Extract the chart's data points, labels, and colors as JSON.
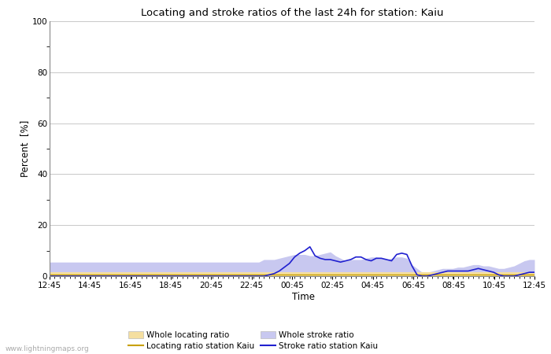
{
  "title": "Locating and stroke ratios of the last 24h for station: Kaiu",
  "xlabel": "Time",
  "ylabel": "Percent  [%]",
  "ylim": [
    0,
    100
  ],
  "yticks": [
    0,
    20,
    40,
    60,
    80,
    100
  ],
  "background_color": "#ffffff",
  "plot_bg_color": "#ffffff",
  "watermark": "www.lightningmaps.org",
  "x_labels": [
    "12:45",
    "14:45",
    "16:45",
    "18:45",
    "20:45",
    "22:45",
    "00:45",
    "02:45",
    "04:45",
    "06:45",
    "08:45",
    "10:45",
    "12:45"
  ],
  "whole_locating_color": "#f5dfa0",
  "whole_stroke_color": "#c8c8f0",
  "locating_line_color": "#c8a000",
  "stroke_line_color": "#2020d0",
  "whole_locating_ratio": [
    1.5,
    1.5,
    1.5,
    1.5,
    1.5,
    1.5,
    1.5,
    1.5,
    1.5,
    1.5,
    1.5,
    1.5,
    1.5,
    1.5,
    1.5,
    1.5,
    1.5,
    1.5,
    1.5,
    1.5,
    1.5,
    1.5,
    1.5,
    1.5,
    1.5,
    1.5,
    1.5,
    1.5,
    1.5,
    1.5,
    1.5,
    1.5,
    1.5,
    1.5,
    1.5,
    1.5,
    1.5,
    1.5,
    1.5,
    1.5,
    1.5,
    1.5,
    1.5,
    1.5,
    1.5,
    1.5,
    1.5,
    1.5,
    1.5,
    1.5,
    1.5,
    1.5,
    1.5,
    1.5,
    1.5,
    1.5,
    1.5,
    1.5,
    1.5,
    1.5,
    1.5,
    1.5,
    1.5,
    1.5,
    1.5,
    1.5,
    1.5,
    1.5,
    1.5,
    1.5,
    1.5,
    1.5,
    1.5,
    1.5,
    1.5,
    1.5,
    1.5,
    1.5,
    1.5,
    1.5,
    1.5,
    1.5,
    1.5,
    1.5,
    1.5,
    1.5,
    1.5,
    1.5,
    1.5,
    1.5,
    1.5,
    1.5,
    1.5,
    1.5,
    1.5,
    1.5
  ],
  "whole_stroke_ratio": [
    5.5,
    5.5,
    5.5,
    5.5,
    5.5,
    5.5,
    5.5,
    5.5,
    5.5,
    5.5,
    5.5,
    5.5,
    5.5,
    5.5,
    5.5,
    5.5,
    5.5,
    5.5,
    5.5,
    5.5,
    5.5,
    5.5,
    5.5,
    5.5,
    5.5,
    5.5,
    5.5,
    5.5,
    5.5,
    5.5,
    5.5,
    5.5,
    5.5,
    5.5,
    5.5,
    5.5,
    5.5,
    5.5,
    5.5,
    5.5,
    5.5,
    5.5,
    6.5,
    6.5,
    6.5,
    7.0,
    7.5,
    8.0,
    8.5,
    8.5,
    8.5,
    8.0,
    8.0,
    8.5,
    9.0,
    9.5,
    8.0,
    7.0,
    6.0,
    6.5,
    6.5,
    6.5,
    7.0,
    7.5,
    7.5,
    7.0,
    6.5,
    7.0,
    7.5,
    7.5,
    7.0,
    4.5,
    3.0,
    1.5,
    1.5,
    2.0,
    2.5,
    3.0,
    3.0,
    3.0,
    3.5,
    3.5,
    4.0,
    4.5,
    4.5,
    4.0,
    4.0,
    3.5,
    3.0,
    3.0,
    3.5,
    4.0,
    5.0,
    6.0,
    6.5,
    6.5
  ],
  "locating_ratio_station": [
    0.5,
    0.5,
    0.5,
    0.5,
    0.5,
    0.5,
    0.5,
    0.5,
    0.5,
    0.5,
    0.5,
    0.5,
    0.5,
    0.5,
    0.5,
    0.5,
    0.5,
    0.5,
    0.5,
    0.5,
    0.5,
    0.5,
    0.5,
    0.5,
    0.5,
    0.5,
    0.5,
    0.5,
    0.5,
    0.5,
    0.5,
    0.5,
    0.5,
    0.5,
    0.5,
    0.5,
    0.5,
    0.5,
    0.5,
    0.5,
    0.5,
    0.5,
    0.5,
    0.5,
    0.5,
    0.5,
    0.5,
    0.5,
    0.5,
    0.5,
    0.5,
    0.5,
    0.5,
    0.5,
    0.5,
    0.5,
    0.5,
    0.5,
    0.5,
    0.5,
    0.5,
    0.5,
    0.5,
    0.5,
    0.5,
    0.5,
    0.5,
    0.5,
    0.5,
    0.5,
    0.5,
    0.5,
    0.5,
    0.5,
    0.5,
    0.5,
    0.5,
    0.5,
    0.5,
    0.5,
    0.5,
    0.5,
    0.5,
    0.5,
    0.5,
    0.5,
    0.5,
    0.5,
    0.5,
    0.5,
    0.5,
    0.5,
    0.5,
    0.5,
    0.5,
    0.5
  ],
  "stroke_ratio_station": [
    0.0,
    0.0,
    0.0,
    0.0,
    0.0,
    0.0,
    0.0,
    0.0,
    0.0,
    0.0,
    0.0,
    0.0,
    0.0,
    0.0,
    0.0,
    0.0,
    0.0,
    0.0,
    0.0,
    0.0,
    0.0,
    0.0,
    0.0,
    0.0,
    0.0,
    0.0,
    0.0,
    0.0,
    0.0,
    0.0,
    0.0,
    0.0,
    0.0,
    0.0,
    0.0,
    0.0,
    0.0,
    0.0,
    0.0,
    0.0,
    0.0,
    0.0,
    0.0,
    0.5,
    1.0,
    2.0,
    3.5,
    5.0,
    7.5,
    9.0,
    10.0,
    11.5,
    8.0,
    7.0,
    6.5,
    6.5,
    6.0,
    5.5,
    6.0,
    6.5,
    7.5,
    7.5,
    6.5,
    6.0,
    7.0,
    7.0,
    6.5,
    6.0,
    8.5,
    9.0,
    8.5,
    4.0,
    0.5,
    0.0,
    0.0,
    0.5,
    1.0,
    1.5,
    2.0,
    2.0,
    2.0,
    2.0,
    2.0,
    2.5,
    3.0,
    2.5,
    2.0,
    1.5,
    0.5,
    0.0,
    0.0,
    0.0,
    0.5,
    1.0,
    1.5,
    1.5
  ]
}
